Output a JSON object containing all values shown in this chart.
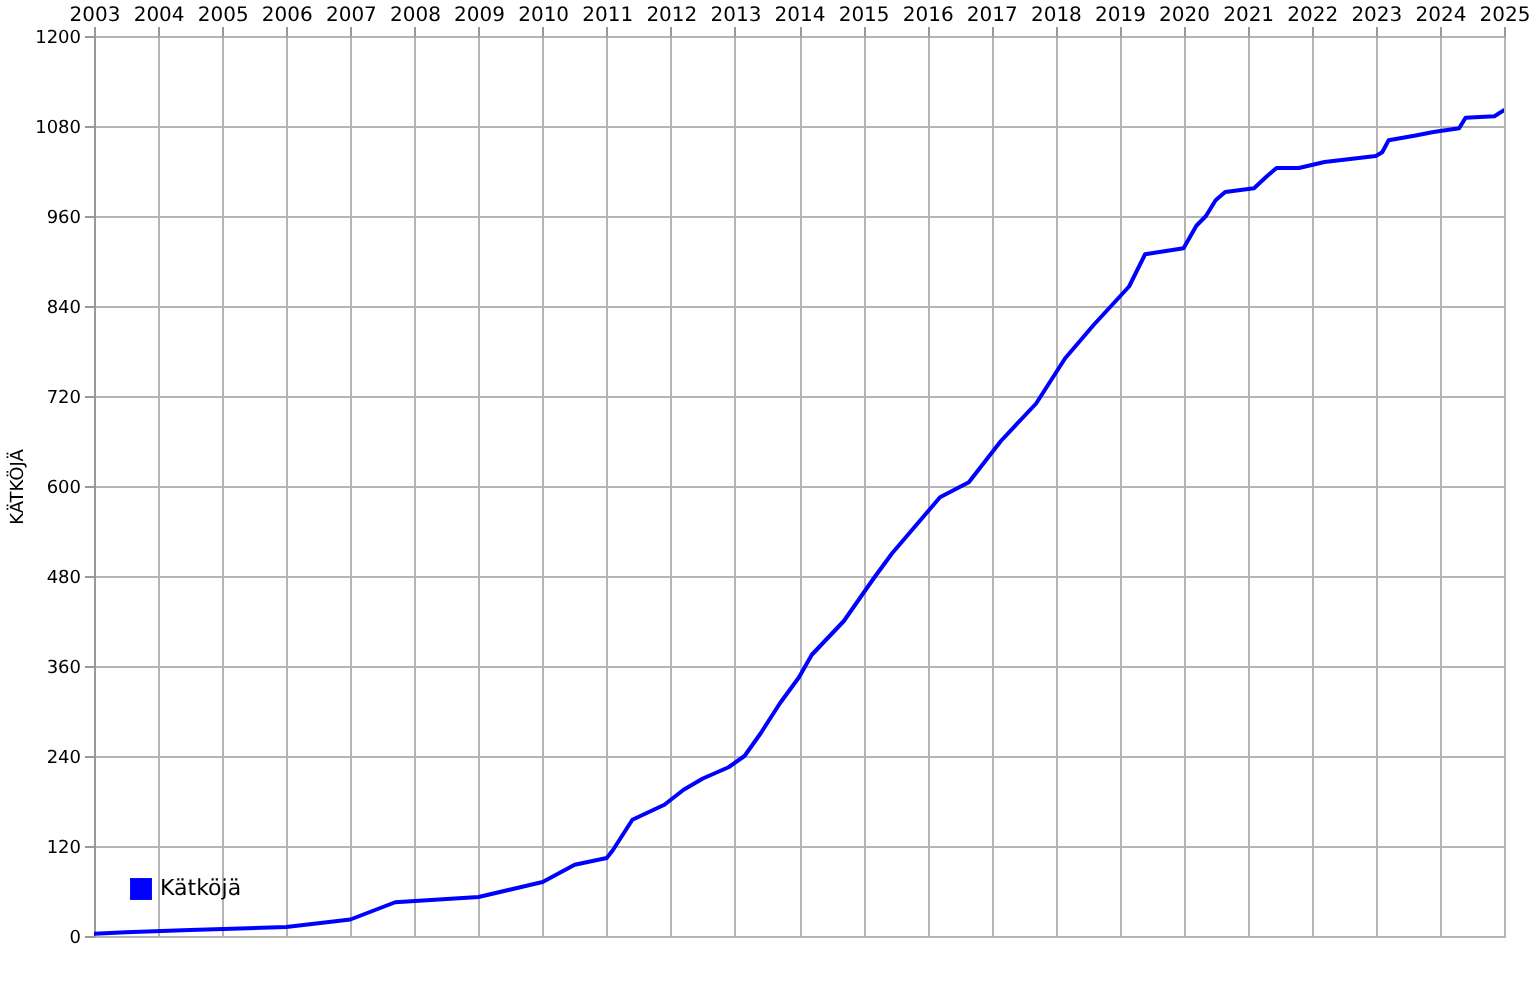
{
  "chart_data": {
    "type": "line",
    "ylabel": "KÄTKÖJÄ",
    "x": [
      2003.0,
      2003.5,
      2004.5,
      2006.0,
      2007.0,
      2007.7,
      2009.0,
      2010.0,
      2010.5,
      2011.0,
      2011.1,
      2011.4,
      2011.9,
      2012.2,
      2012.5,
      2012.9,
      2013.15,
      2013.4,
      2013.7,
      2014.0,
      2014.2,
      2014.7,
      2015.15,
      2015.45,
      2015.75,
      2016.2,
      2016.65,
      2017.15,
      2017.7,
      2018.15,
      2018.6,
      2019.15,
      2019.4,
      2020.0,
      2020.2,
      2020.35,
      2020.5,
      2020.65,
      2021.1,
      2021.2,
      2021.3,
      2021.45,
      2021.8,
      2022.2,
      2022.7,
      2023.0,
      2023.1,
      2023.2,
      2023.6,
      2023.9,
      2024.3,
      2024.4,
      2024.85,
      2025.0
    ],
    "series": [
      {
        "name": "Kätköjä",
        "color": "#0000ff",
        "values": [
          3,
          5,
          8,
          12,
          22,
          45,
          52,
          72,
          95,
          104,
          115,
          155,
          175,
          195,
          210,
          225,
          240,
          270,
          310,
          345,
          375,
          420,
          475,
          510,
          540,
          585,
          605,
          660,
          710,
          770,
          815,
          866,
          909,
          917,
          947,
          960,
          981,
          992,
          997,
          1005,
          1013,
          1024,
          1024,
          1032,
          1037,
          1040,
          1045,
          1061,
          1067,
          1072,
          1077,
          1091,
          1093,
          1101
        ]
      }
    ],
    "xlim": [
      2003,
      2025
    ],
    "xticks": [
      2003,
      2004,
      2005,
      2006,
      2007,
      2008,
      2009,
      2010,
      2011,
      2012,
      2013,
      2014,
      2015,
      2016,
      2017,
      2018,
      2019,
      2020,
      2021,
      2022,
      2023,
      2024,
      2025
    ],
    "ylim": [
      0,
      1200
    ],
    "yticks": [
      0,
      120,
      240,
      360,
      480,
      600,
      720,
      840,
      960,
      1080,
      1200
    ],
    "grid": true,
    "legend": "bottom left",
    "marker": "none",
    "line_style": "solid"
  }
}
